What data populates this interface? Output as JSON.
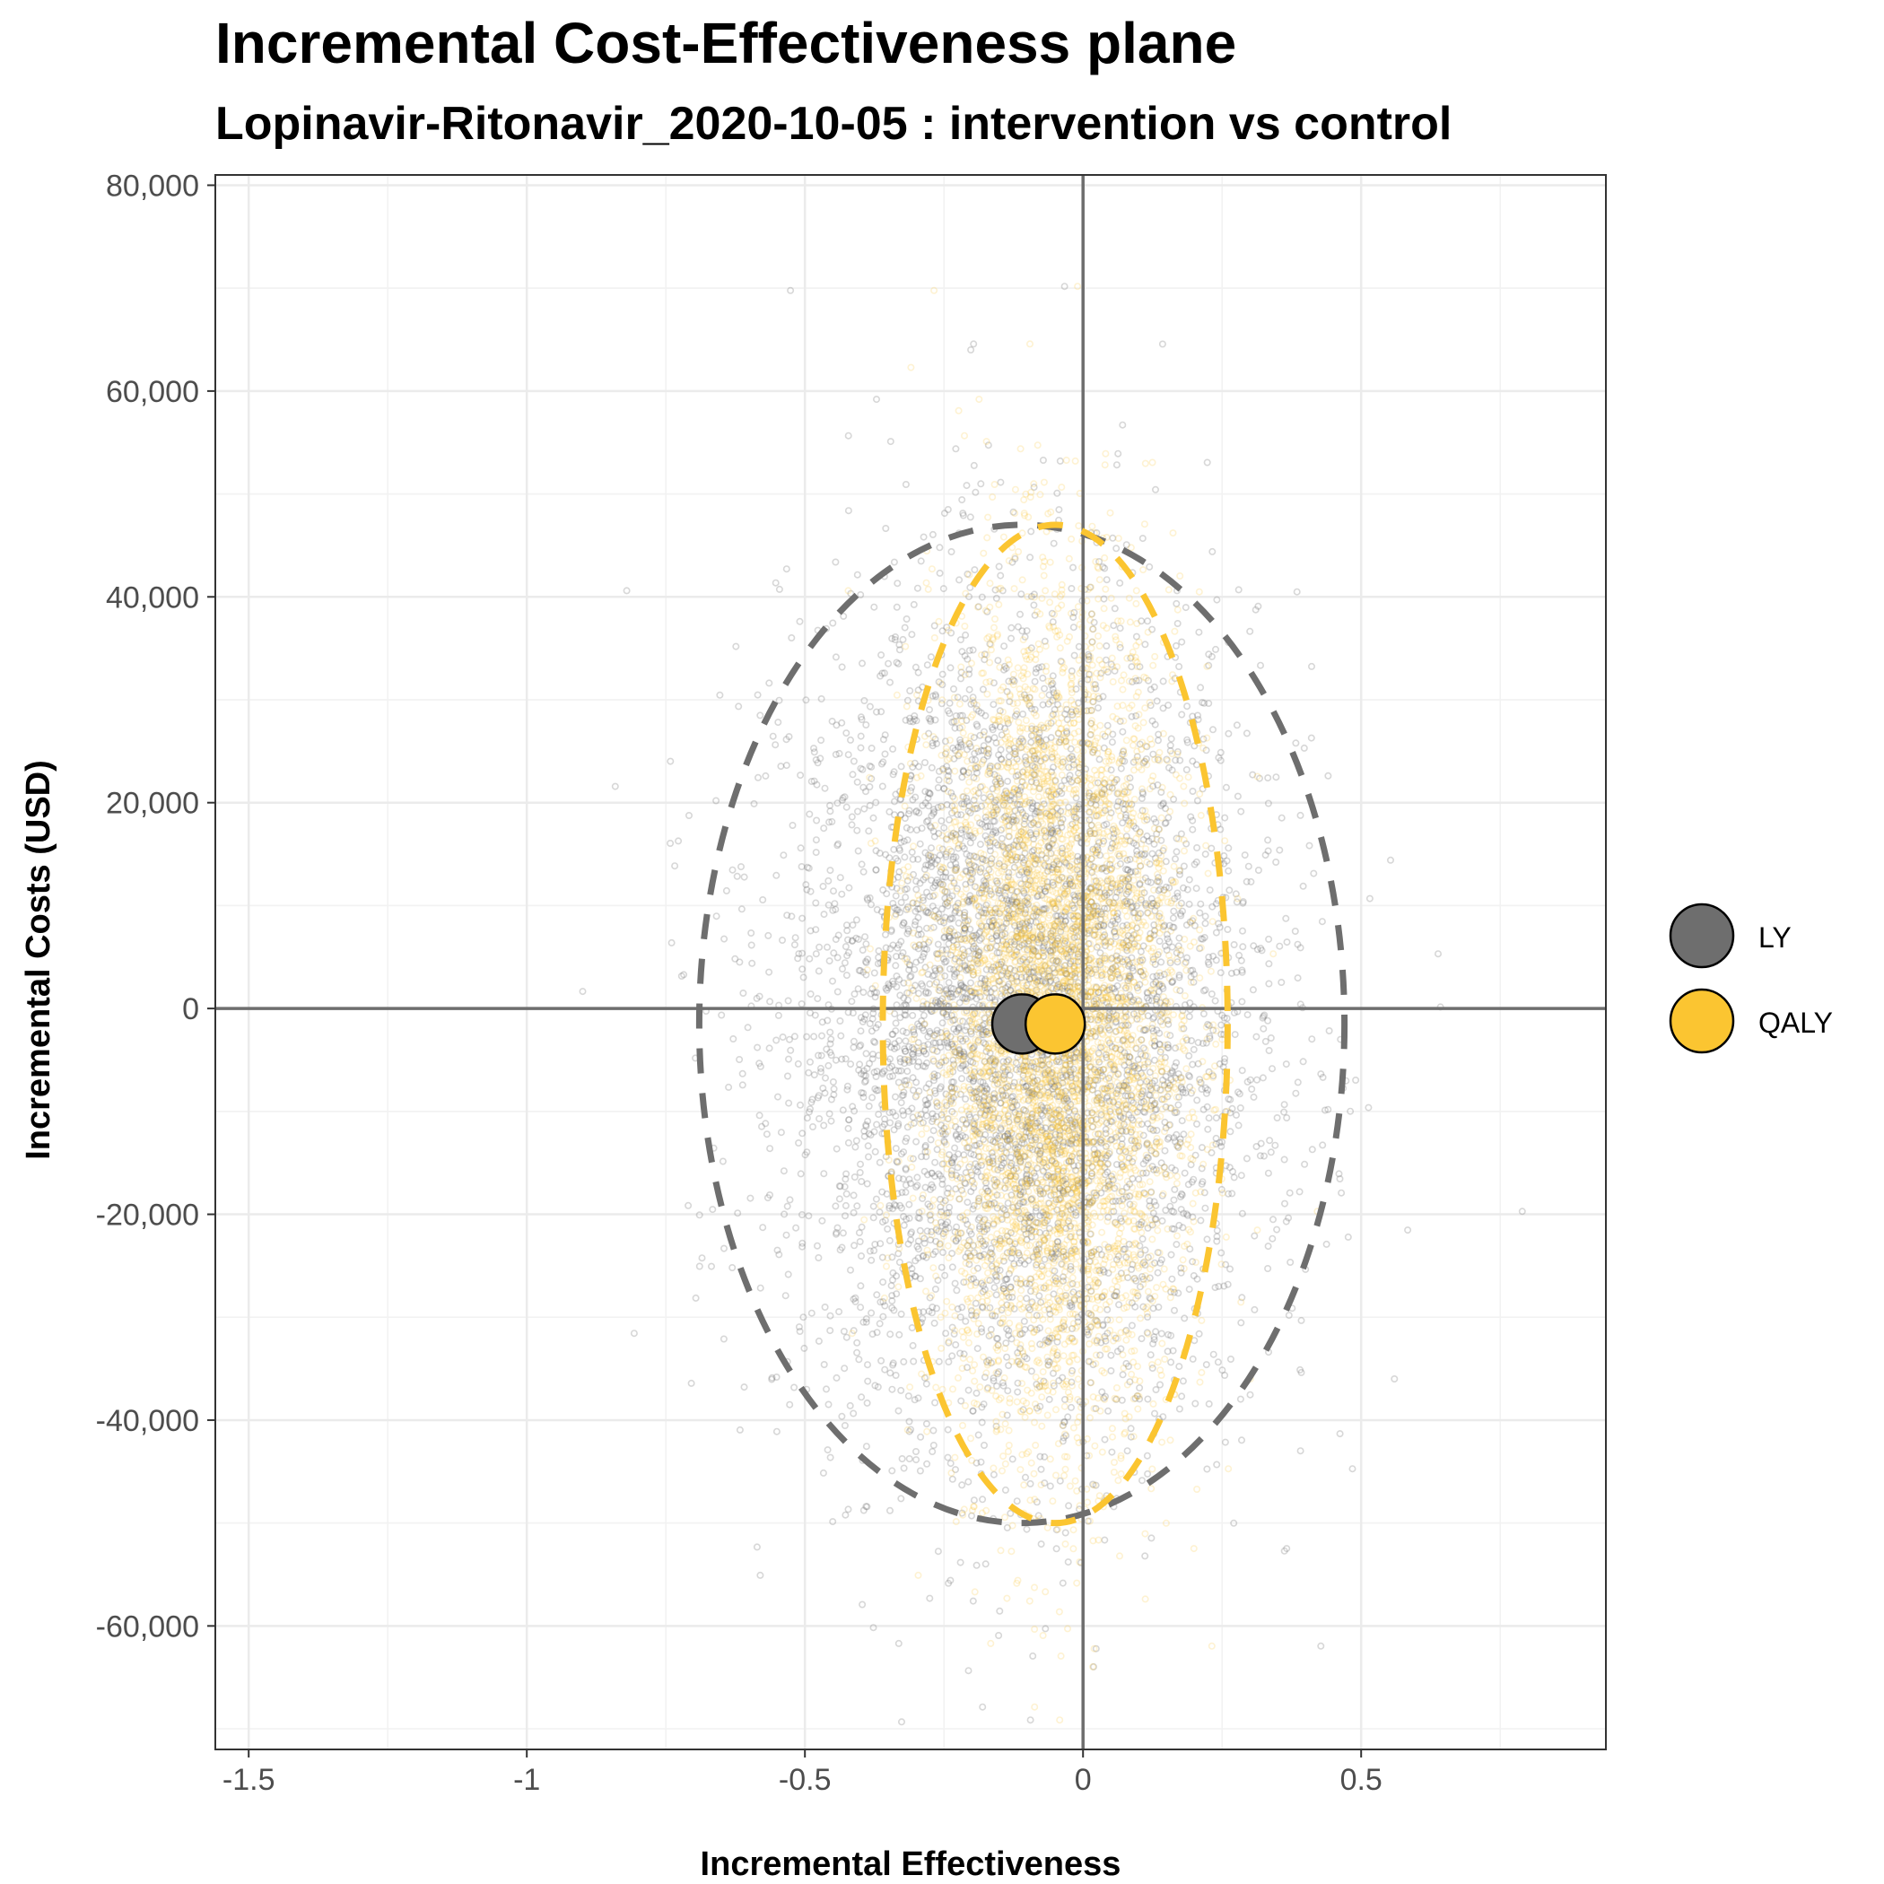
{
  "chart_data": {
    "type": "scatter",
    "title": "Incremental Cost-Effectiveness plane",
    "subtitle": "Lopinavir-Ritonavir_2020-10-05 : intervention vs control",
    "xlabel": "Incremental Effectiveness",
    "ylabel": "Incremental Costs (USD)",
    "xlim": [
      -1.56,
      0.94
    ],
    "ylim": [
      -72000,
      81000
    ],
    "x_ticks": [
      -1.5,
      -1,
      -0.5,
      0,
      0.5
    ],
    "x_tick_labels": [
      "-1.5",
      "-1",
      "-0.5",
      "0",
      "0.5"
    ],
    "y_ticks": [
      80000,
      60000,
      40000,
      20000,
      0,
      -20000,
      -40000,
      -60000
    ],
    "y_tick_labels": [
      "80,000",
      "60,000",
      "40,000",
      "20,000",
      "0",
      "-20,000",
      "-40,000",
      "-60,000"
    ],
    "grid": true,
    "legend_position": "right",
    "reference_lines": {
      "x": 0,
      "y": 0
    },
    "series": [
      {
        "name": "LY",
        "color": "#6e6e6e",
        "mean": {
          "x": -0.11,
          "y": -1500
        },
        "ellipse": {
          "cx": -0.11,
          "cy": -1500,
          "rx": 0.58,
          "ry": 48500
        },
        "cloud": {
          "n": 5000,
          "sd_x": 0.21,
          "sd_y": 20000
        }
      },
      {
        "name": "QALY",
        "color": "#fbc531",
        "mean": {
          "x": -0.05,
          "y": -1500
        },
        "ellipse": {
          "cx": -0.05,
          "cy": -1500,
          "rx": 0.31,
          "ry": 48500
        },
        "cloud": {
          "n": 5000,
          "sd_x": 0.11,
          "sd_y": 20000
        }
      }
    ]
  }
}
